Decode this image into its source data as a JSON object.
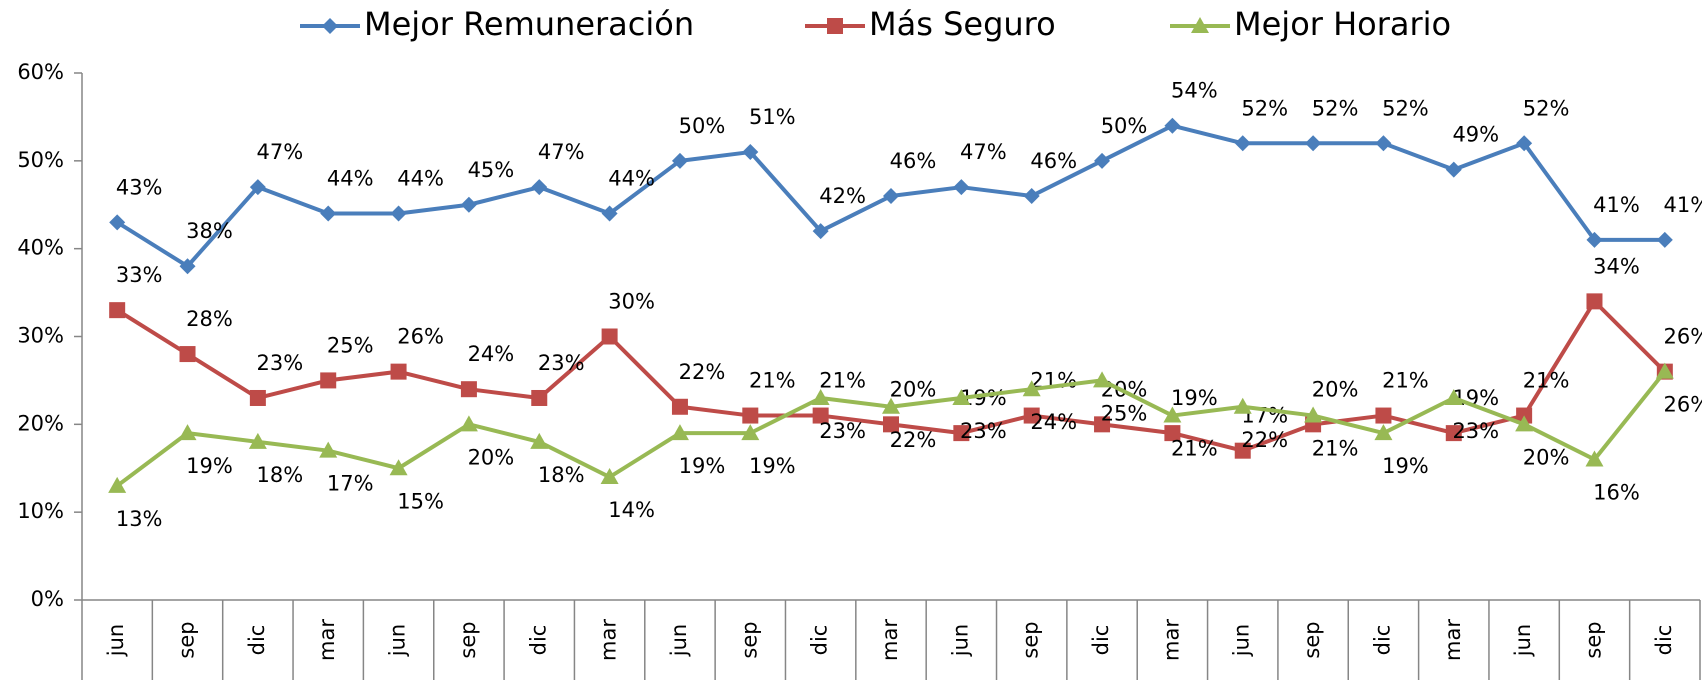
{
  "chart_data": {
    "type": "line",
    "categories": [
      "jun",
      "sep",
      "dic",
      "mar",
      "jun",
      "sep",
      "dic",
      "mar",
      "jun",
      "sep",
      "dic",
      "mar",
      "jun",
      "sep",
      "dic",
      "mar",
      "jun",
      "sep",
      "dic",
      "mar",
      "jun",
      "sep",
      "dic"
    ],
    "series": [
      {
        "name": "Mejor Remuneración",
        "color": "#4a7ebb",
        "marker": "diamond",
        "label_position": "above",
        "values": [
          43,
          38,
          47,
          44,
          44,
          45,
          47,
          44,
          50,
          51,
          42,
          46,
          47,
          46,
          50,
          54,
          52,
          52,
          52,
          49,
          52,
          41,
          41
        ],
        "value_labels": [
          "43%",
          "38%",
          "47%",
          "44%",
          "44%",
          "45%",
          "47%",
          "44%",
          "50%",
          "51%",
          "42%",
          "46%",
          "47%",
          "46%",
          "50%",
          "54%",
          "52%",
          "52%",
          "52%",
          "49%",
          "52%",
          "41%",
          "41%"
        ]
      },
      {
        "name": "Más Seguro",
        "color": "#be4b48",
        "marker": "square",
        "label_position": "above",
        "values": [
          33,
          28,
          23,
          25,
          26,
          24,
          23,
          30,
          22,
          21,
          21,
          20,
          19,
          21,
          20,
          19,
          17,
          20,
          21,
          19,
          21,
          34,
          26
        ],
        "value_labels": [
          "33%",
          "28%",
          "23%",
          "25%",
          "26%",
          "24%",
          "23%",
          "30%",
          "22%",
          "21%",
          "21%",
          "20%",
          "19%",
          "21%",
          "20%",
          "19%",
          "17%",
          "20%",
          "21%",
          "19%",
          "21%",
          "34%",
          "26%"
        ]
      },
      {
        "name": "Mejor Horario",
        "color": "#98b954",
        "marker": "triangle",
        "label_position": "below",
        "values": [
          13,
          19,
          18,
          17,
          15,
          20,
          18,
          14,
          19,
          19,
          23,
          22,
          23,
          24,
          25,
          21,
          22,
          21,
          19,
          23,
          20,
          16,
          26
        ],
        "value_labels": [
          "13%",
          "19%",
          "18%",
          "17%",
          "15%",
          "20%",
          "18%",
          "14%",
          "19%",
          "19%",
          "23%",
          "22%",
          "23%",
          "24%",
          "25%",
          "21%",
          "22%",
          "21%",
          "19%",
          "23%",
          "20%",
          "16%",
          "26%"
        ]
      }
    ],
    "ylim": [
      0,
      60
    ],
    "yticks": [
      {
        "value": 0,
        "label": "0%"
      },
      {
        "value": 10,
        "label": "10%"
      },
      {
        "value": 20,
        "label": "20%"
      },
      {
        "value": 30,
        "label": "30%"
      },
      {
        "value": 40,
        "label": "40%"
      },
      {
        "value": 50,
        "label": "50%"
      },
      {
        "value": 60,
        "label": "60%"
      }
    ],
    "grid": false
  }
}
